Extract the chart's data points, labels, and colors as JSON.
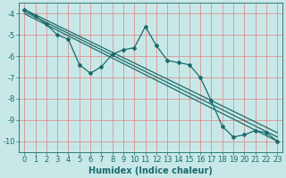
{
  "xlabel": "Humidex (Indice chaleur)",
  "background_color": "#c8e8e8",
  "grid_color": "#e08080",
  "line_color": "#1a6b6b",
  "xlim": [
    -0.5,
    23.5
  ],
  "ylim": [
    -10.5,
    -3.5
  ],
  "xticks": [
    0,
    1,
    2,
    3,
    4,
    5,
    6,
    7,
    8,
    9,
    10,
    11,
    12,
    13,
    14,
    15,
    16,
    17,
    18,
    19,
    20,
    21,
    22,
    23
  ],
  "yticks": [
    -10,
    -9,
    -8,
    -7,
    -6,
    -5,
    -4
  ],
  "x": [
    0,
    1,
    2,
    3,
    4,
    5,
    6,
    7,
    8,
    9,
    10,
    11,
    12,
    13,
    14,
    15,
    16,
    17,
    18,
    19,
    20,
    21,
    22,
    23
  ],
  "y_wavy": [
    -3.8,
    -4.1,
    -4.5,
    -5.0,
    -5.2,
    -6.4,
    -6.8,
    -6.5,
    -5.9,
    -5.7,
    -5.6,
    -4.6,
    -5.5,
    -6.2,
    -6.3,
    -6.4,
    -7.0,
    -8.1,
    -9.3,
    -9.8,
    -9.7,
    -9.5,
    -9.6,
    -10.0
  ],
  "diag_lines": [
    {
      "x": [
        0,
        23
      ],
      "y": [
        -3.8,
        -9.6
      ]
    },
    {
      "x": [
        0,
        23
      ],
      "y": [
        -3.9,
        -9.8
      ]
    },
    {
      "x": [
        0,
        23
      ],
      "y": [
        -4.0,
        -10.0
      ]
    }
  ],
  "label_fontsize": 7,
  "tick_fontsize": 6
}
